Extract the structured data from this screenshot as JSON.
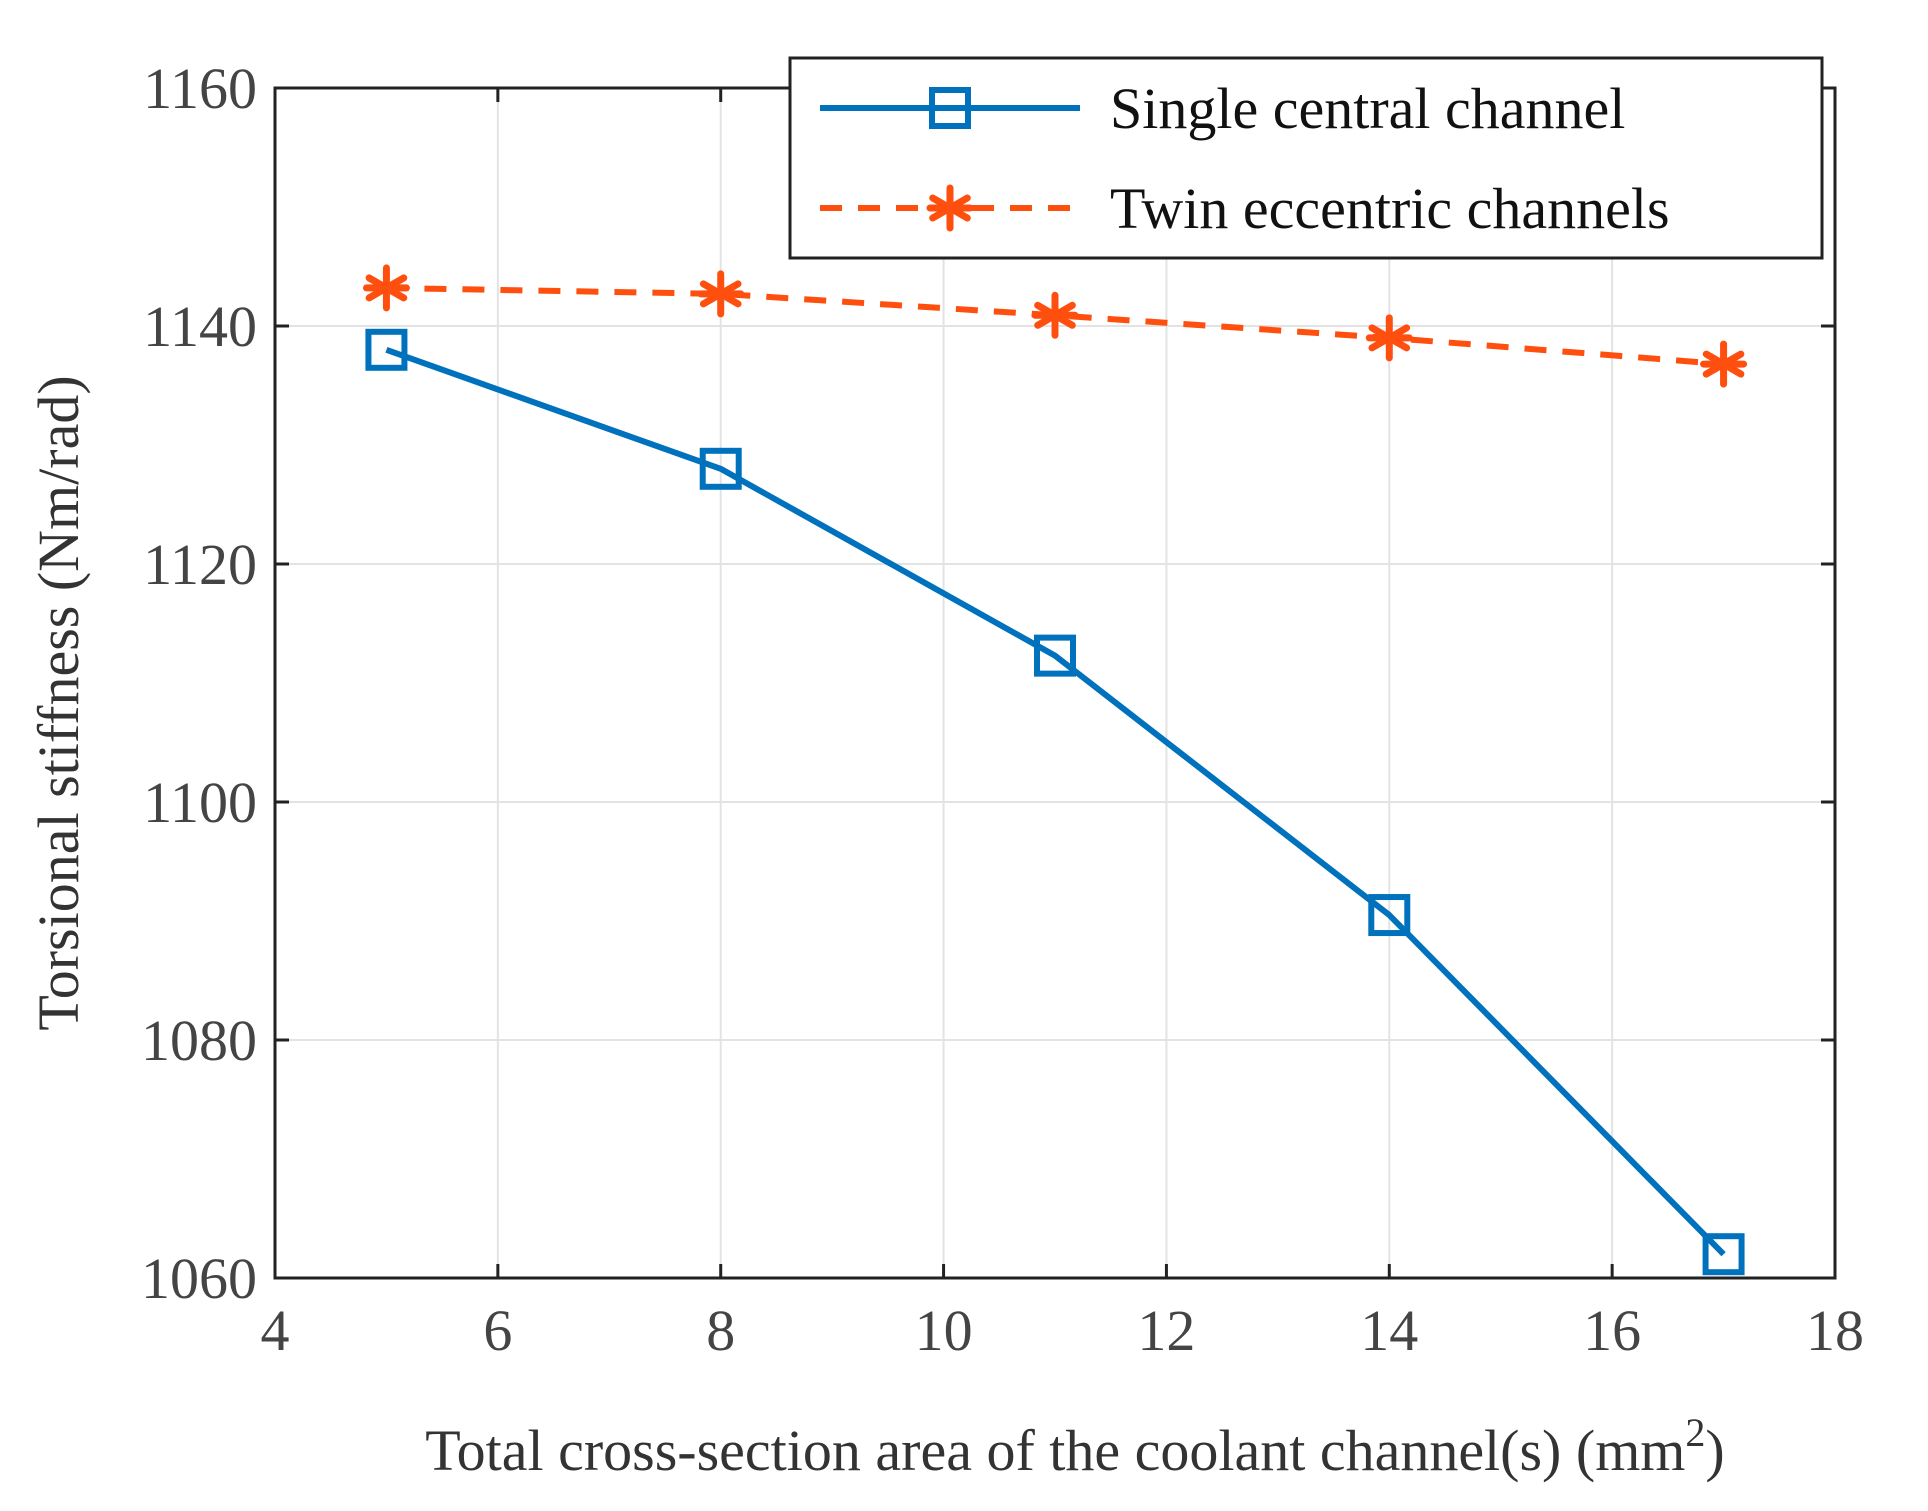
{
  "chart_data": {
    "type": "line",
    "title": "",
    "xlabel": "Total cross-section area of the coolant channel(s) (mm",
    "xlabel_sup": "2",
    "xlabel_close": ")",
    "ylabel": "Torsional stiffness (Nm/rad)",
    "xlim": [
      4,
      18
    ],
    "ylim": [
      1060,
      1160
    ],
    "xticks": [
      4,
      6,
      8,
      10,
      12,
      14,
      16,
      18
    ],
    "yticks": [
      1060,
      1080,
      1100,
      1120,
      1140,
      1160
    ],
    "grid": true,
    "legend_position": "top-right",
    "series": [
      {
        "name": "Single central channel",
        "color": "#0072BD",
        "line_style": "solid",
        "marker": "square",
        "x": [
          5,
          8,
          11,
          14,
          17
        ],
        "y": [
          1138,
          1128,
          1112.3,
          1090.5,
          1062
        ]
      },
      {
        "name": "Twin eccentric channels",
        "color": "#FF4F0F",
        "line_style": "dashed",
        "marker": "asterisk",
        "x": [
          5,
          8,
          11,
          14,
          17
        ],
        "y": [
          1143.2,
          1142.7,
          1140.9,
          1139,
          1136.8
        ]
      }
    ]
  }
}
